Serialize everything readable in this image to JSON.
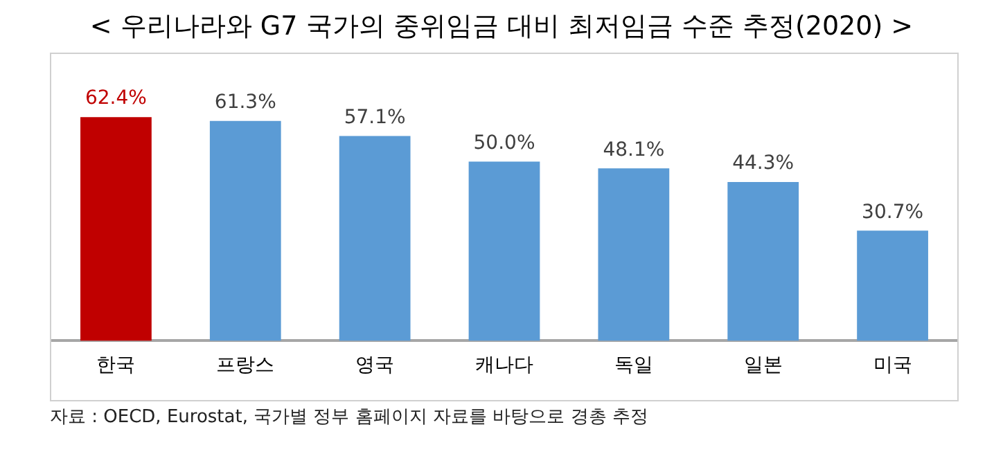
{
  "chart_data": {
    "type": "bar",
    "title": "< 우리나라와 G7 국가의 중위임금 대비 최저임금 수준 추정(2020) >",
    "categories": [
      "한국",
      "프랑스",
      "영국",
      "캐나다",
      "독일",
      "일본",
      "미국"
    ],
    "values": [
      62.4,
      61.3,
      57.1,
      50.0,
      48.1,
      44.3,
      30.7
    ],
    "colors": [
      "#c00000",
      "#5b9bd5",
      "#5b9bd5",
      "#5b9bd5",
      "#5b9bd5",
      "#5b9bd5",
      "#5b9bd5"
    ],
    "ylim": [
      0,
      80
    ],
    "value_labels": [
      "62.4%",
      "61.3%",
      "57.1%",
      "50.0%",
      "48.1%",
      "44.3%",
      "30.7%"
    ],
    "annotations": [
      "자료 : OECD, Eurostat, 국가별 정부 홈페이지 자료를 바탕으로 경총 추정"
    ]
  }
}
